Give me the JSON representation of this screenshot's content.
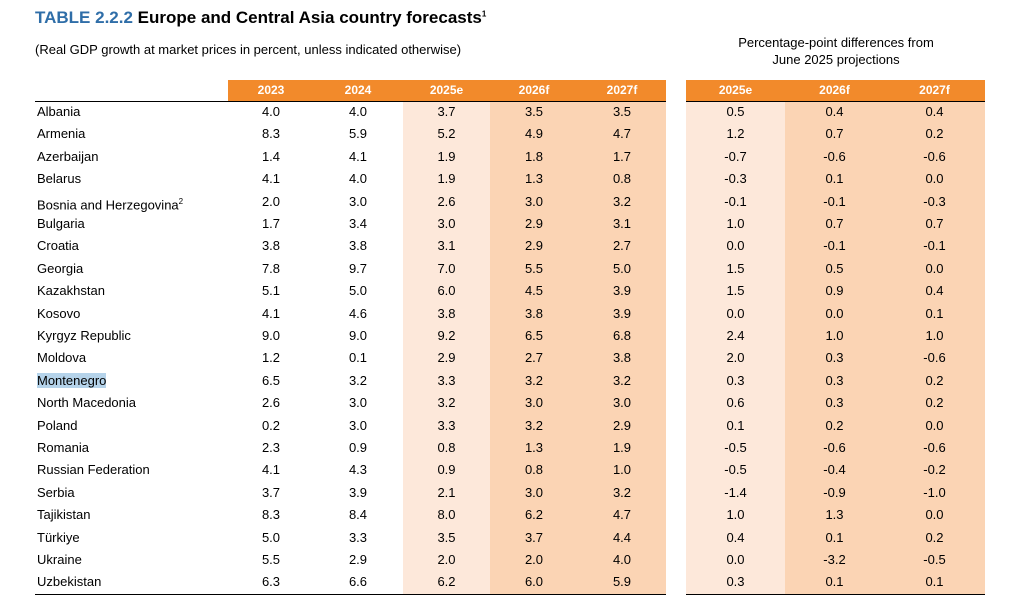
{
  "header": {
    "label": "TABLE 2.2.2",
    "title": "Europe and Central Asia country forecasts",
    "note": "1",
    "subtitle": "(Real GDP growth at market prices in percent, unless indicated otherwise)",
    "right_title": [
      "Percentage-point differences from",
      "June 2025 projections"
    ]
  },
  "table": {
    "columns": [
      "2023",
      "2024",
      "2025e",
      "2026f",
      "2027f"
    ],
    "diff_columns": [
      "2025e",
      "2026f",
      "2027f"
    ],
    "rows": [
      {
        "name": "Albania",
        "values": [
          "4.0",
          "4.0",
          "3.7",
          "3.5",
          "3.5",
          "0.5",
          "0.4",
          "0.4"
        ]
      },
      {
        "name": "Armenia",
        "values": [
          "8.3",
          "5.9",
          "5.2",
          "4.9",
          "4.7",
          "1.2",
          "0.7",
          "0.2"
        ]
      },
      {
        "name": "Azerbaijan",
        "values": [
          "1.4",
          "4.1",
          "1.9",
          "1.8",
          "1.7",
          "-0.7",
          "-0.6",
          "-0.6"
        ]
      },
      {
        "name": "Belarus",
        "values": [
          "4.1",
          "4.0",
          "1.9",
          "1.3",
          "0.8",
          "-0.3",
          "0.1",
          "0.0"
        ]
      },
      {
        "name": "Bosnia and Herzegovina",
        "note": "2",
        "values": [
          "2.0",
          "3.0",
          "2.6",
          "3.0",
          "3.2",
          "-0.1",
          "-0.1",
          "-0.3"
        ]
      },
      {
        "name": "Bulgaria",
        "values": [
          "1.7",
          "3.4",
          "3.0",
          "2.9",
          "3.1",
          "1.0",
          "0.7",
          "0.7"
        ]
      },
      {
        "name": "Croatia",
        "values": [
          "3.8",
          "3.8",
          "3.1",
          "2.9",
          "2.7",
          "0.0",
          "-0.1",
          "-0.1"
        ]
      },
      {
        "name": "Georgia",
        "values": [
          "7.8",
          "9.7",
          "7.0",
          "5.5",
          "5.0",
          "1.5",
          "0.5",
          "0.0"
        ]
      },
      {
        "name": "Kazakhstan",
        "values": [
          "5.1",
          "5.0",
          "6.0",
          "4.5",
          "3.9",
          "1.5",
          "0.9",
          "0.4"
        ]
      },
      {
        "name": "Kosovo",
        "values": [
          "4.1",
          "4.6",
          "3.8",
          "3.8",
          "3.9",
          "0.0",
          "0.0",
          "0.1"
        ]
      },
      {
        "name": "Kyrgyz Republic",
        "values": [
          "9.0",
          "9.0",
          "9.2",
          "6.5",
          "6.8",
          "2.4",
          "1.0",
          "1.0"
        ]
      },
      {
        "name": "Moldova",
        "values": [
          "1.2",
          "0.1",
          "2.9",
          "2.7",
          "3.8",
          "2.0",
          "0.3",
          "-0.6"
        ]
      },
      {
        "name": "Montenegro",
        "values": [
          "6.5",
          "3.2",
          "3.3",
          "3.2",
          "3.2",
          "0.3",
          "0.3",
          "0.2"
        ]
      },
      {
        "name": "North Macedonia",
        "values": [
          "2.6",
          "3.0",
          "3.2",
          "3.0",
          "3.0",
          "0.6",
          "0.3",
          "0.2"
        ]
      },
      {
        "name": "Poland",
        "values": [
          "0.2",
          "3.0",
          "3.3",
          "3.2",
          "2.9",
          "0.1",
          "0.2",
          "0.0"
        ]
      },
      {
        "name": "Romania",
        "values": [
          "2.3",
          "0.9",
          "0.8",
          "1.3",
          "1.9",
          "-0.5",
          "-0.6",
          "-0.6"
        ]
      },
      {
        "name": "Russian Federation",
        "values": [
          "4.1",
          "4.3",
          "0.9",
          "0.8",
          "1.0",
          "-0.5",
          "-0.4",
          "-0.2"
        ]
      },
      {
        "name": "Serbia",
        "values": [
          "3.7",
          "3.9",
          "2.1",
          "3.0",
          "3.2",
          "-1.4",
          "-0.9",
          "-1.0"
        ]
      },
      {
        "name": "Tajikistan",
        "values": [
          "8.3",
          "8.4",
          "8.0",
          "6.2",
          "4.7",
          "1.0",
          "1.3",
          "0.0"
        ]
      },
      {
        "name": "Türkiye",
        "values": [
          "5.0",
          "3.3",
          "3.5",
          "3.7",
          "4.4",
          "0.4",
          "0.1",
          "0.2"
        ]
      },
      {
        "name": "Ukraine",
        "values": [
          "5.5",
          "2.9",
          "2.0",
          "2.0",
          "4.0",
          "0.0",
          "-3.2",
          "-0.5"
        ]
      },
      {
        "name": "Uzbekistan",
        "values": [
          "6.3",
          "6.6",
          "6.2",
          "6.0",
          "5.9",
          "0.3",
          "0.1",
          "0.1"
        ]
      }
    ]
  }
}
